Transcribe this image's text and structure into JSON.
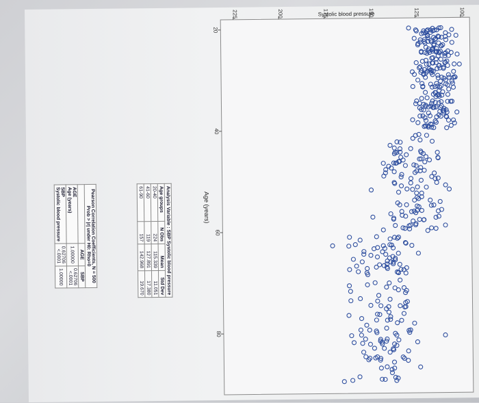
{
  "chart_data": {
    "type": "scatter",
    "orientation_note": "",
    "ylabel": "Systolic blood pressure",
    "xlabel": "Age (years)",
    "x_ticks": [
      20,
      40,
      60,
      80
    ],
    "y_ticks": [
      100,
      125,
      150,
      175,
      200,
      225
    ],
    "xlim": [
      18,
      92
    ],
    "ylim": [
      95,
      232
    ],
    "marker_color": "#2f4f9f"
  },
  "tables": {
    "correlation": {
      "title_line1": "Pearson Correlation Coefficients, N = 500",
      "title_line2": "Prob > |r| under H0: Rho=0",
      "col_headers": [
        "",
        "AGE",
        "SBP"
      ],
      "rows": [
        {
          "name": "AGE",
          "label": "Age (years)",
          "c1_top": "1.00000",
          "c1_bot": "",
          "c2_top": "0.62706",
          "c2_bot": "<.0001"
        },
        {
          "name": "SBP",
          "label": "Systolic blood pressure",
          "c1_top": "0.62706",
          "c1_bot": "<.0001",
          "c2_top": "1.00000",
          "c2_bot": ""
        }
      ]
    },
    "analysis": {
      "title": "Analysis Variable : SBP Systolic blood pressure",
      "col_headers": [
        "Age groups",
        "N Obs",
        "Mean",
        "Std Dev"
      ],
      "rows": [
        [
          "20-40",
          "224",
          "115.339",
          "11.051"
        ],
        [
          "41-60",
          "119",
          "127.891",
          "17.380"
        ],
        [
          "61-90",
          "157",
          "142.968",
          "19.670"
        ]
      ]
    }
  }
}
